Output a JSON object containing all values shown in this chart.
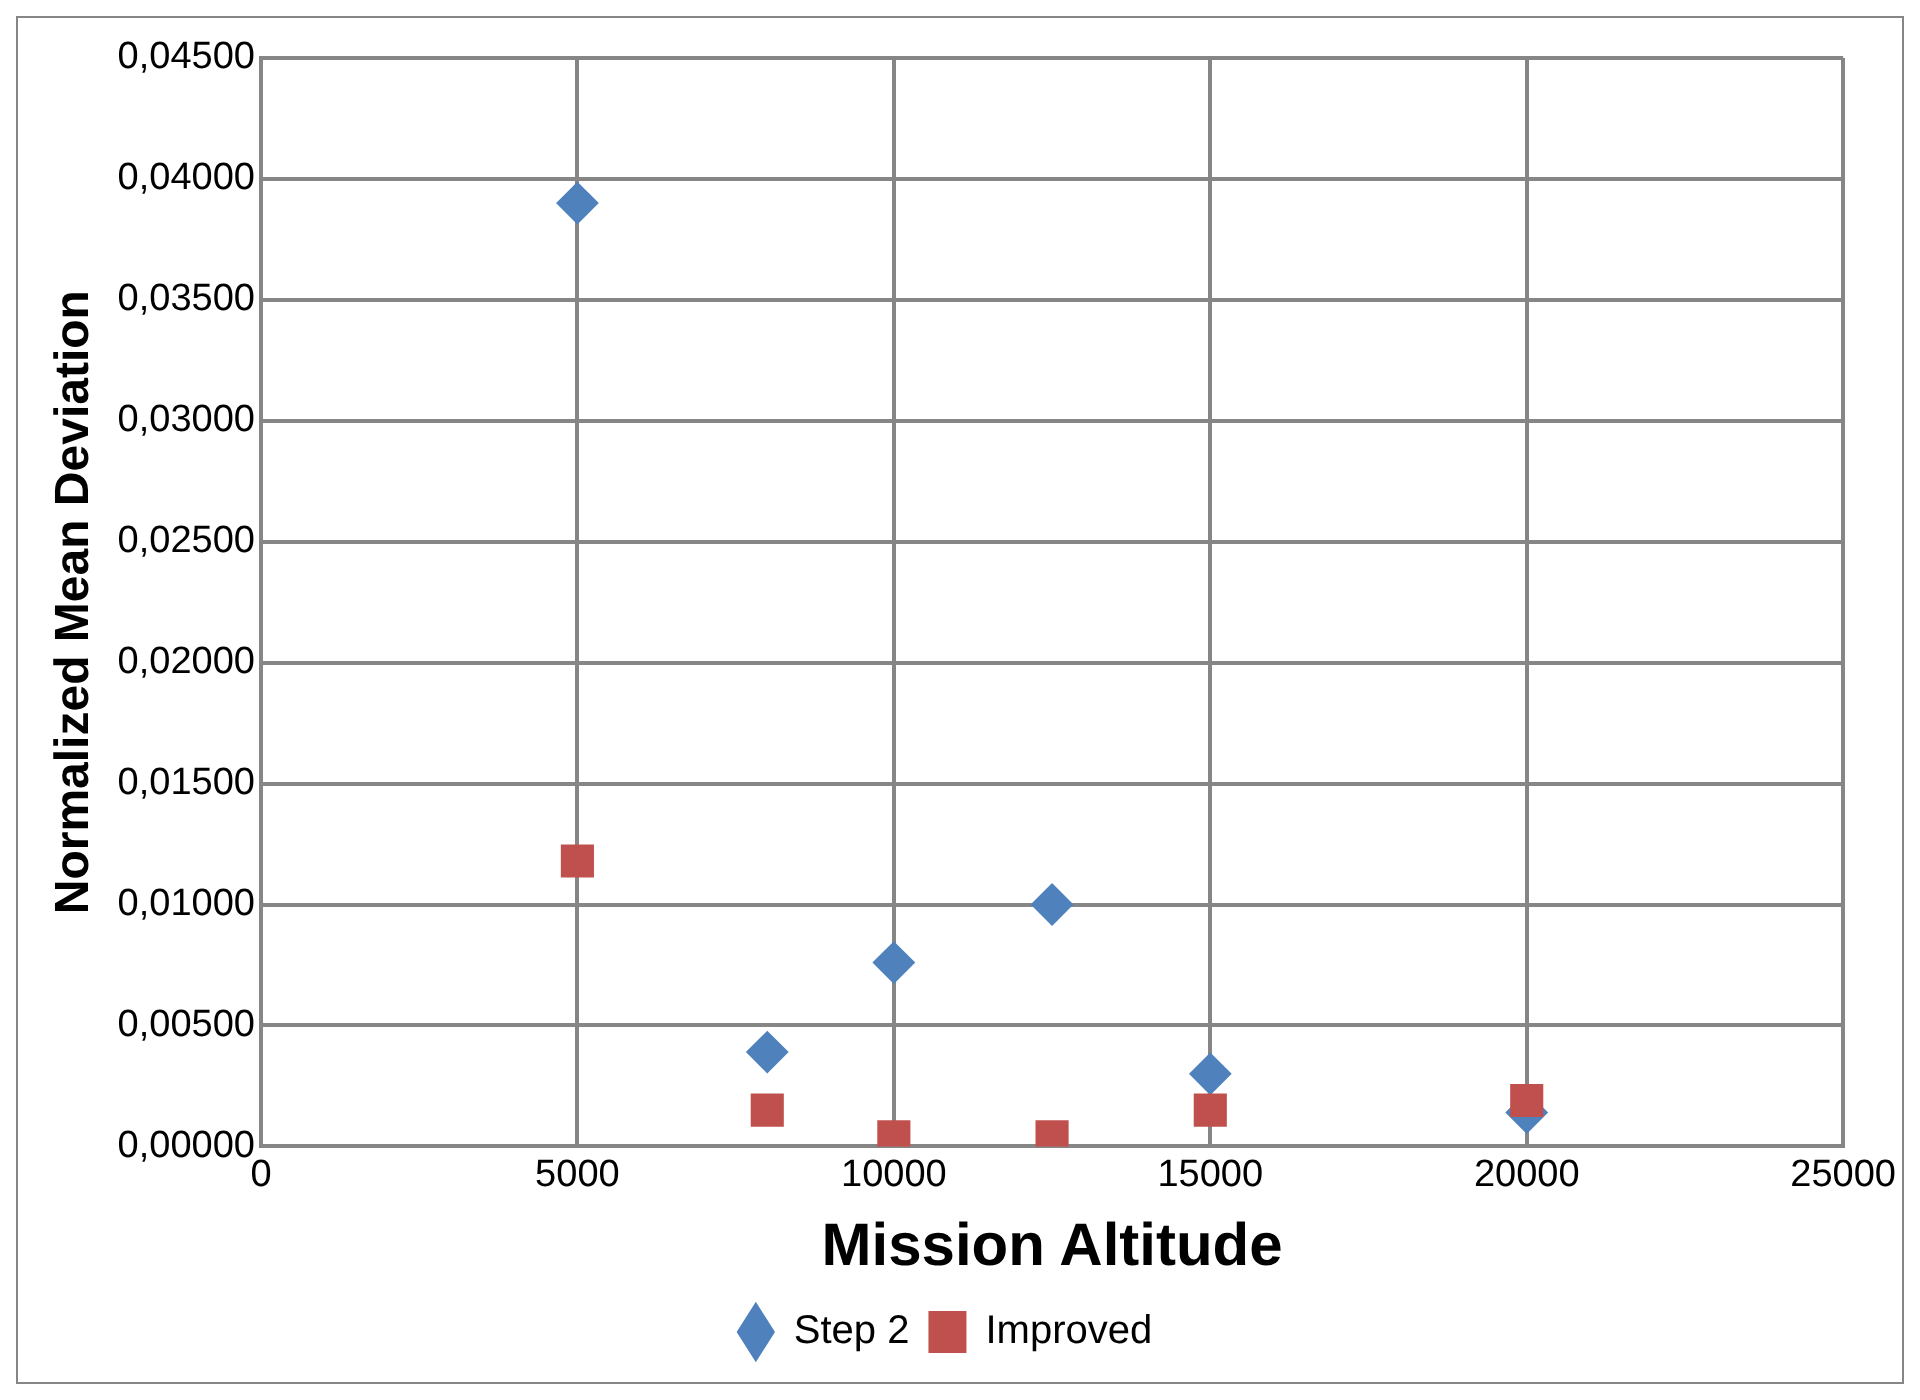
{
  "chart_data": {
    "type": "scatter",
    "xlabel": "Mission Altitude",
    "ylabel": "Normalized Mean Deviation",
    "x": [
      5000,
      8000,
      10000,
      12500,
      15000,
      20000
    ],
    "series": [
      {
        "name": "Step 2",
        "color": "#4f81bd",
        "marker": "diamond",
        "values": [
          0.039,
          0.0039,
          0.0076,
          0.01,
          0.003,
          0.0014
        ]
      },
      {
        "name": "Improved",
        "color": "#c0504d",
        "marker": "square",
        "values": [
          0.0118,
          0.0015,
          0.0004,
          0.0004,
          0.0015,
          0.0019
        ]
      }
    ],
    "xlim": [
      0,
      25000
    ],
    "xticks": [
      0,
      5000,
      10000,
      15000,
      20000,
      25000
    ],
    "ylim": [
      0,
      0.045
    ],
    "yticks": [
      {
        "value": 0,
        "label": "0,00000"
      },
      {
        "value": 0.005,
        "label": "0,00500"
      },
      {
        "value": 0.01,
        "label": "0,01000"
      },
      {
        "value": 0.015,
        "label": "0,01500"
      },
      {
        "value": 0.02,
        "label": "0,02000"
      },
      {
        "value": 0.025,
        "label": "0,02500"
      },
      {
        "value": 0.03,
        "label": "0,03000"
      },
      {
        "value": 0.035,
        "label": "0,03500"
      },
      {
        "value": 0.04,
        "label": "0,04000"
      },
      {
        "value": 0.045,
        "label": "0,04500"
      }
    ],
    "grid": true,
    "legend": "bottom"
  }
}
